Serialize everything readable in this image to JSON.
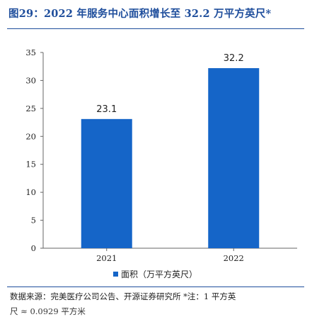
{
  "page": {
    "title": "图29：2022 年服务中心面积增长至 32.2 万平方英尺*",
    "source": "数据来源：完美医疗公司公告、开源证券研究所 *注：1 平方英",
    "source_cont": "尺 ≈ 0.0929 平方米"
  },
  "chart_data": {
    "type": "bar",
    "categories": [
      "2021",
      "2022"
    ],
    "series": [
      {
        "name": "面积（万平方英尺）",
        "values": [
          23.1,
          32.2
        ]
      }
    ],
    "ylim": [
      0,
      35
    ],
    "yticks": [
      0,
      5,
      10,
      15,
      20,
      25,
      30,
      35
    ],
    "xlabel": "",
    "ylabel": "",
    "grid": false,
    "legend": "bottom-center",
    "bar_color": "#1565c8"
  }
}
